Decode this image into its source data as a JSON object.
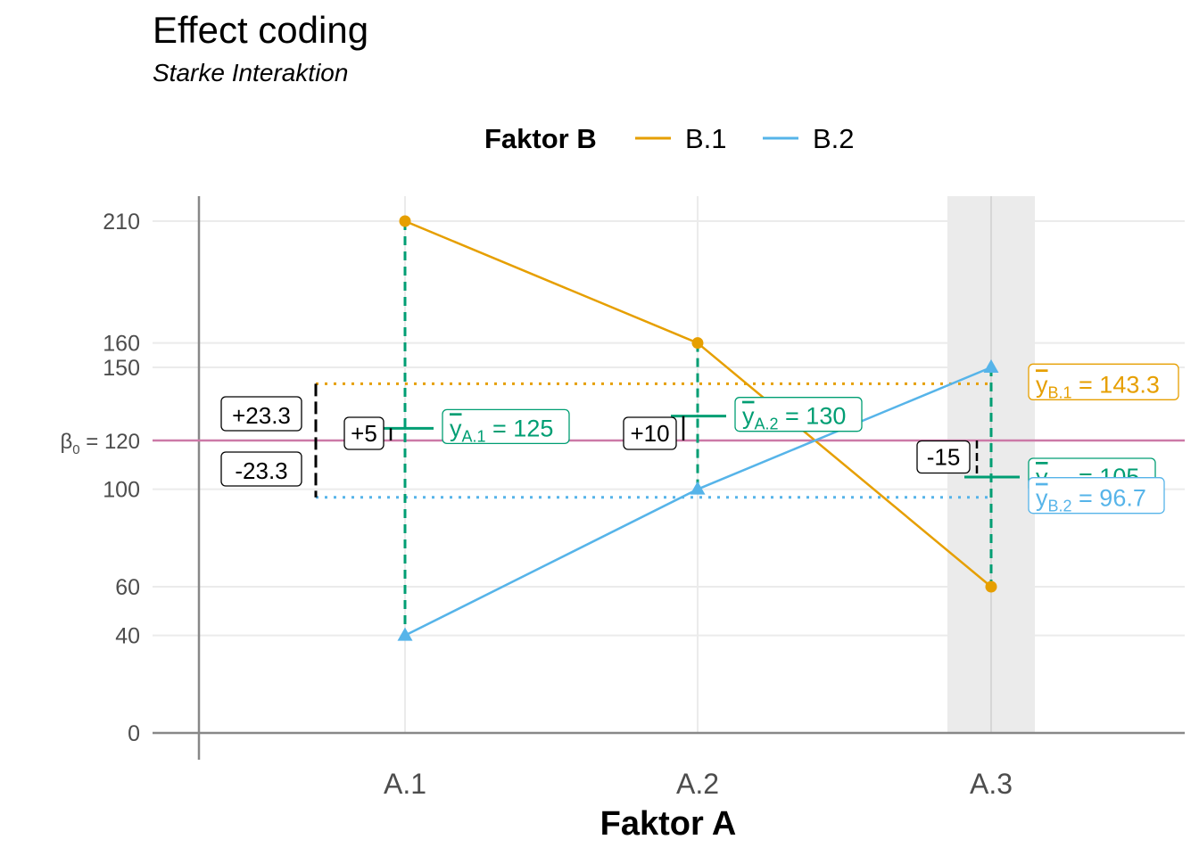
{
  "colors": {
    "b1": "#E69F00",
    "b2": "#56B4E9",
    "a_means": "#009E73",
    "beta0": "#CC79A7",
    "grid": "#EBEBEB",
    "axis": "#888888",
    "highlight": "#EBEBEB"
  },
  "chart_data": {
    "type": "line",
    "title": "Effect coding",
    "subtitle": "Starke Interaktion",
    "xlabel": "Faktor A",
    "ylabel": "",
    "categories": [
      "A.1",
      "A.2",
      "A.3"
    ],
    "y_ticks": [
      0,
      40,
      60,
      100,
      150,
      160,
      210
    ],
    "ylim": [
      0,
      210
    ],
    "grid": true,
    "legend": {
      "title": "Faktor B",
      "placement": "top",
      "entries": [
        "B.1",
        "B.2"
      ]
    },
    "series": [
      {
        "name": "B.1",
        "values": [
          210,
          160,
          60
        ],
        "marker": "circle"
      },
      {
        "name": "B.2",
        "values": [
          40,
          100,
          150
        ],
        "marker": "triangle"
      }
    ],
    "highlighted_category": "A.3",
    "beta0": {
      "prefix": "β",
      "sub": "0",
      "suffix": " = 120",
      "value": 120
    },
    "factor_b_means": [
      {
        "prefix": "y",
        "sub": "B.1",
        "suffix": " = 143.3",
        "value": 143.3
      },
      {
        "prefix": "y",
        "sub": "B.2",
        "suffix": " = 96.7",
        "value": 96.7
      }
    ],
    "factor_a_means": [
      {
        "prefix": "y",
        "sub": "A.1",
        "suffix": " = 125",
        "value": 125
      },
      {
        "prefix": "y",
        "sub": "A.2",
        "suffix": " = 130",
        "value": 130
      },
      {
        "prefix": "y",
        "sub": "A.3",
        "suffix": " = 105",
        "value": 105
      }
    ],
    "effects_a": [
      {
        "category": "A.1",
        "label": "+5",
        "value": 5
      },
      {
        "category": "A.2",
        "label": "+10",
        "value": 10
      },
      {
        "category": "A.3",
        "label": "-15",
        "value": -15
      }
    ],
    "effects_b": [
      {
        "label": "+23.3",
        "value": 23.3
      },
      {
        "label": "-23.3",
        "value": -23.3
      }
    ]
  }
}
